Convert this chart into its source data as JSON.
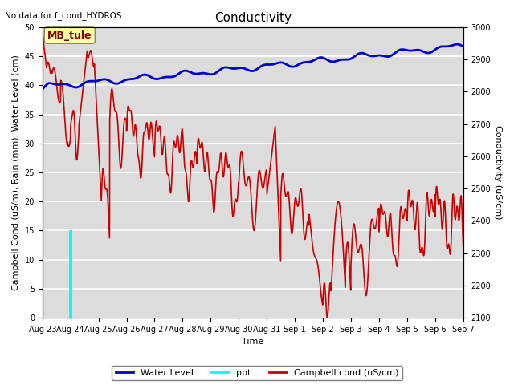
{
  "title": "Conductivity",
  "top_left_text": "No data for f_cond_HYDROS",
  "annotation_box": "MB_tule",
  "ylabel_left": "Campbell Cond (uS/m), Rain (mm), Water Level (cm)",
  "ylabel_right": "Conductivity (uS/cm)",
  "xlabel": "Time",
  "ylim_left": [
    0,
    50
  ],
  "ylim_right": [
    2100,
    3000
  ],
  "background_color": "#dcdcdc",
  "grid_color": "white",
  "x_tick_labels": [
    "Aug 23",
    "Aug 24",
    "Aug 25",
    "Aug 26",
    "Aug 27",
    "Aug 28",
    "Aug 29",
    "Aug 30",
    "Aug 31",
    "Sep 1",
    "Sep 2",
    "Sep 3",
    "Sep 4",
    "Sep 5",
    "Sep 6",
    "Sep 7"
  ],
  "water_level_color": "#0000cc",
  "ppt_color": "#00ffff",
  "campbell_color": "#cc0000",
  "legend_labels": [
    "Water Level",
    "ppt",
    "Campbell cond (uS/cm)"
  ],
  "title_fontsize": 11,
  "axis_fontsize": 8,
  "tick_fontsize": 7
}
